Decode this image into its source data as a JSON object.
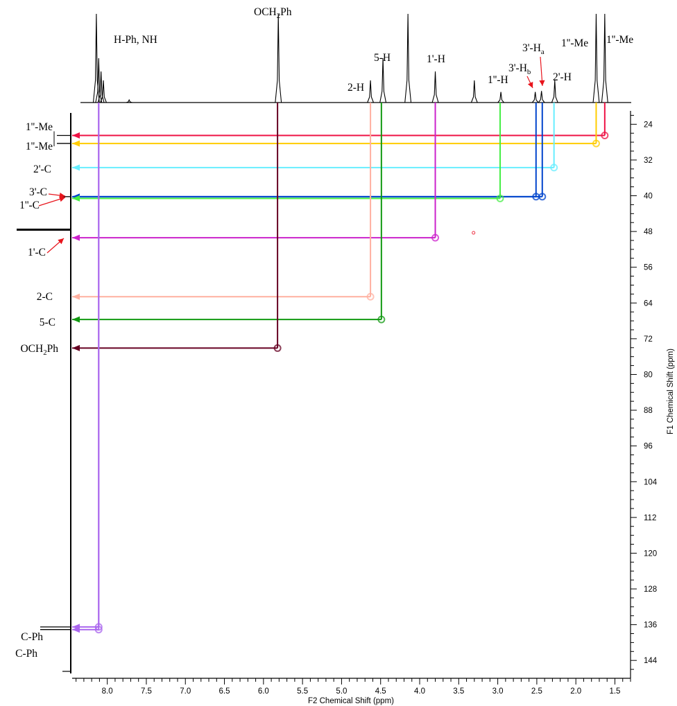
{
  "chart_data": {
    "type": "2D NMR HSQC correlation plot",
    "x_axis": {
      "label": "F2 Chemical Shift (ppm)",
      "range": [
        8.45,
        1.3
      ],
      "reversed": true,
      "ticks": [
        "8.0",
        "7.5",
        "7.0",
        "6.5",
        "6.0",
        "5.5",
        "5.0",
        "4.5",
        "4.0",
        "3.5",
        "3.0",
        "2.5",
        "2.0",
        "1.5"
      ],
      "minor_step": 0.1
    },
    "y_axis": {
      "label": "F1 Chemical Shift (ppm)",
      "range": [
        21,
        148
      ],
      "position": "right",
      "ticks": [
        "24",
        "32",
        "40",
        "48",
        "56",
        "64",
        "72",
        "80",
        "88",
        "96",
        "104",
        "112",
        "120",
        "128",
        "136",
        "144"
      ],
      "minor_step": 2
    },
    "proton_labels": [
      {
        "base": "H-Ph, NH",
        "sub": "",
        "tail": ""
      },
      {
        "base": "OCH",
        "sub": "2",
        "tail": "Ph"
      },
      {
        "base": "5-H",
        "sub": "",
        "tail": ""
      },
      {
        "base": "2-H",
        "sub": "",
        "tail": ""
      },
      {
        "base": "1'-H",
        "sub": "",
        "tail": ""
      },
      {
        "base": "1''-H",
        "sub": "",
        "tail": ""
      },
      {
        "base": "3'-H",
        "sub": "a",
        "tail": ""
      },
      {
        "base": "3'-H",
        "sub": "b",
        "tail": ""
      },
      {
        "base": "2'-H",
        "sub": "",
        "tail": ""
      },
      {
        "base": "1''-Me",
        "sub": "",
        "tail": ""
      },
      {
        "base": "1''-Me",
        "sub": "",
        "tail": ""
      }
    ],
    "carbon_labels": [
      {
        "base": "1''-Me",
        "sub": "",
        "tail": ""
      },
      {
        "base": "1''-Me",
        "sub": "",
        "tail": ""
      },
      {
        "base": "2'-C",
        "sub": "",
        "tail": ""
      },
      {
        "base": "3'-C",
        "sub": "",
        "tail": ""
      },
      {
        "base": "1''-C",
        "sub": "",
        "tail": ""
      },
      {
        "base": "1'-C",
        "sub": "",
        "tail": ""
      },
      {
        "base": "2-C",
        "sub": "",
        "tail": ""
      },
      {
        "base": "5-C",
        "sub": "",
        "tail": ""
      },
      {
        "base": "OCH",
        "sub": "2",
        "tail": "Ph"
      },
      {
        "base": "C-Ph",
        "sub": "",
        "tail": ""
      },
      {
        "base": "C-Ph",
        "sub": "",
        "tail": ""
      }
    ],
    "correlations": [
      {
        "h": 1.63,
        "c": 26.5,
        "color": "#ee1144"
      },
      {
        "h": 1.74,
        "c": 28.3,
        "color": "#ffcc00"
      },
      {
        "h": 2.28,
        "c": 33.7,
        "color": "#66eeff"
      },
      {
        "h": 2.51,
        "c": 40.2,
        "color": "#0044cc"
      },
      {
        "h": 2.43,
        "c": 40.2,
        "color": "#0044cc"
      },
      {
        "h": 2.97,
        "c": 40.6,
        "color": "#44ee44"
      },
      {
        "h": 3.8,
        "c": 49.4,
        "color": "#cc22cc"
      },
      {
        "h": 4.63,
        "c": 62.6,
        "color": "#ffb0a0"
      },
      {
        "h": 4.49,
        "c": 67.7,
        "color": "#119911"
      },
      {
        "h": 5.82,
        "c": 74.1,
        "color": "#660022"
      },
      {
        "h": 8.11,
        "c": 136.5,
        "color": "#aa66ee"
      },
      {
        "h": 8.11,
        "c": 137.1,
        "color": "#aa66ee"
      }
    ],
    "spectrum_peaks": [
      {
        "ppm": 8.14,
        "height": 1.0
      },
      {
        "ppm": 8.11,
        "height": 0.5
      },
      {
        "ppm": 8.08,
        "height": 0.35
      },
      {
        "ppm": 8.05,
        "height": 0.25
      },
      {
        "ppm": 7.72,
        "height": 0.03
      },
      {
        "ppm": 5.81,
        "height": 1.0
      },
      {
        "ppm": 4.63,
        "height": 0.25
      },
      {
        "ppm": 4.47,
        "height": 0.5
      },
      {
        "ppm": 4.15,
        "height": 1.0
      },
      {
        "ppm": 3.8,
        "height": 0.35
      },
      {
        "ppm": 3.3,
        "height": 0.25
      },
      {
        "ppm": 2.96,
        "height": 0.12
      },
      {
        "ppm": 2.52,
        "height": 0.12
      },
      {
        "ppm": 2.44,
        "height": 0.13
      },
      {
        "ppm": 2.27,
        "height": 0.25
      },
      {
        "ppm": 1.74,
        "height": 1.0
      },
      {
        "ppm": 1.63,
        "height": 1.0
      }
    ]
  }
}
